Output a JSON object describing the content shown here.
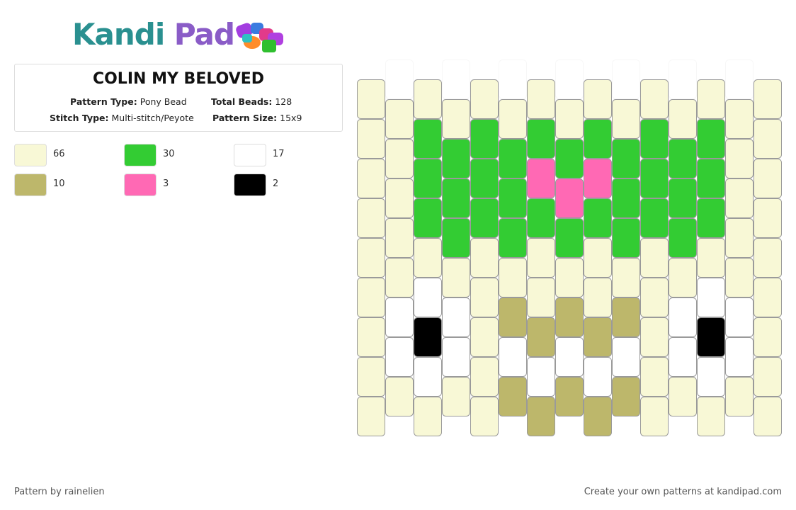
{
  "header": {
    "logo_left": "Kandi",
    "logo_right": "Pad"
  },
  "pattern": {
    "title": "COLIN MY BELOVED",
    "fields": [
      {
        "label": "Pattern Type:",
        "value": "Pony Bead"
      },
      {
        "label": "Total Beads:",
        "value": "128"
      },
      {
        "label": "Stitch Type:",
        "value": "Multi-stitch/Peyote"
      },
      {
        "label": "Pattern Size:",
        "value": "15x9"
      }
    ]
  },
  "palette": [
    {
      "color": "#f8f8d6",
      "count": 66
    },
    {
      "color": "#33cc33",
      "count": 30
    },
    {
      "color": "#ffffff",
      "count": 17
    },
    {
      "color": "#bdb76b",
      "count": 10
    },
    {
      "color": "#ff69b4",
      "count": 3
    },
    {
      "color": "#000000",
      "count": 2
    }
  ],
  "beads": {
    "columns": [
      [
        0,
        0,
        0,
        0,
        0,
        0,
        0,
        0,
        0
      ],
      [
        2,
        0,
        0,
        0,
        0,
        0,
        2,
        2,
        0
      ],
      [
        0,
        1,
        1,
        1,
        0,
        2,
        5,
        2,
        0
      ],
      [
        2,
        0,
        1,
        1,
        1,
        0,
        2,
        2,
        0
      ],
      [
        0,
        1,
        1,
        1,
        0,
        0,
        0,
        0,
        0
      ],
      [
        2,
        0,
        1,
        1,
        1,
        0,
        3,
        2,
        3
      ],
      [
        0,
        1,
        4,
        1,
        0,
        0,
        3,
        2,
        3
      ],
      [
        2,
        0,
        1,
        4,
        1,
        0,
        3,
        2,
        3
      ],
      [
        0,
        1,
        4,
        1,
        0,
        0,
        3,
        2,
        3
      ],
      [
        2,
        0,
        1,
        1,
        1,
        0,
        3,
        2,
        3
      ],
      [
        0,
        1,
        1,
        1,
        0,
        0,
        0,
        0,
        0
      ],
      [
        2,
        0,
        1,
        1,
        1,
        0,
        2,
        2,
        0
      ],
      [
        0,
        1,
        1,
        1,
        0,
        2,
        5,
        2,
        0
      ],
      [
        2,
        0,
        0,
        0,
        0,
        0,
        2,
        2,
        0
      ],
      [
        0,
        0,
        0,
        0,
        0,
        0,
        0,
        0,
        0
      ]
    ]
  },
  "footer": {
    "left": "Pattern by rainelien",
    "right": "Create your own patterns at kandipad.com"
  }
}
